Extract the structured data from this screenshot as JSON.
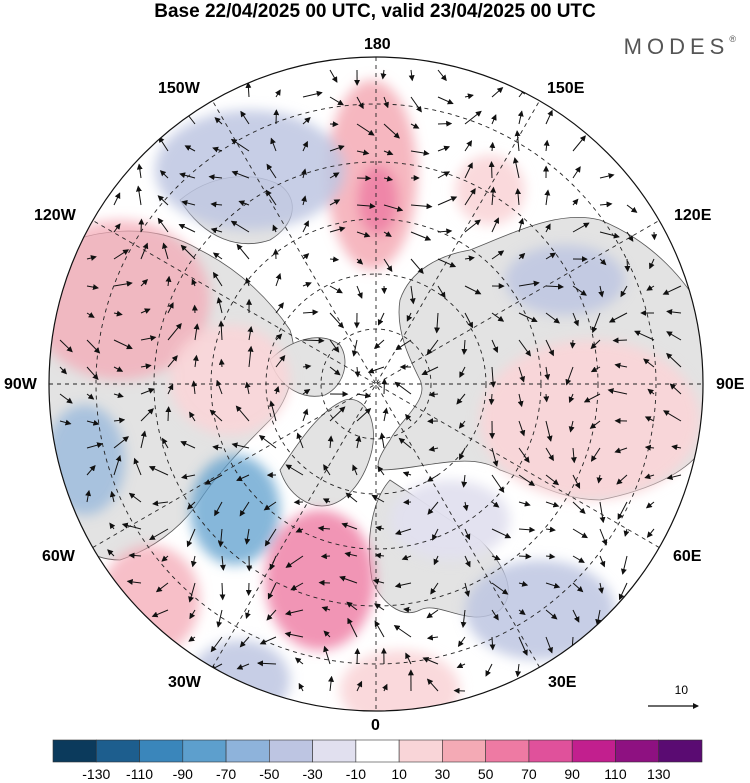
{
  "title": "Base 22/04/2025 00 UTC, valid 23/04/2025 00 UTC",
  "brand": "MODES",
  "brand_mark": "®",
  "longitude_labels": {
    "lon_180": "180",
    "lon_150w": "150W",
    "lon_150e": "150E",
    "lon_120w": "120W",
    "lon_120e": "120E",
    "lon_90w": "90W",
    "lon_90e": "90E",
    "lon_60w": "60W",
    "lon_60e": "60E",
    "lon_30w": "30W",
    "lon_30e": "30E",
    "lon_0": "0"
  },
  "reference_vector": {
    "label": "10"
  },
  "colorbar": {
    "colors": [
      "#0b3a5c",
      "#1d5e8e",
      "#3a86bb",
      "#5d9fcd",
      "#8eb3db",
      "#bdc5e2",
      "#e1e0ef",
      "#ffffff",
      "#f9d5d8",
      "#f4aab5",
      "#ee7aa3",
      "#e0519b",
      "#c21f8e",
      "#8e1181",
      "#5a0b72"
    ],
    "tick_labels": [
      "-130",
      "-110",
      "-90",
      "-70",
      "-50",
      "-30",
      "-10",
      "10",
      "30",
      "50",
      "70",
      "90",
      "110",
      "130"
    ]
  },
  "colors": {
    "land_fill": "#e6e6e6",
    "ocean_fill": "#ffffff",
    "coast": "#444444",
    "grid": "#222222"
  }
}
